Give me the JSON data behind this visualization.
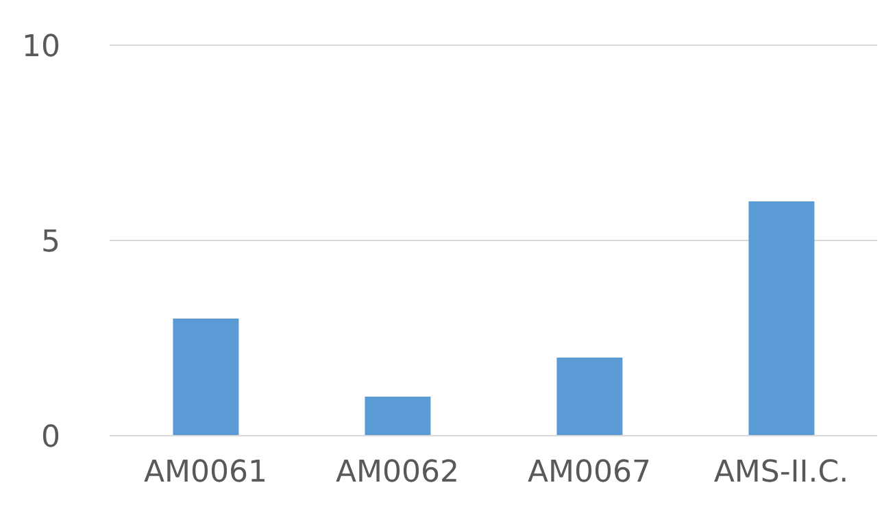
{
  "chart_data": {
    "type": "bar",
    "categories": [
      "AM0061",
      "AM0062",
      "AM0067",
      "AMS-II.C."
    ],
    "values": [
      3,
      1,
      2,
      6
    ],
    "color": "#5b9bd5",
    "ylim": [
      0,
      10
    ],
    "yticks": [
      0,
      5,
      10
    ],
    "grid": "y"
  }
}
